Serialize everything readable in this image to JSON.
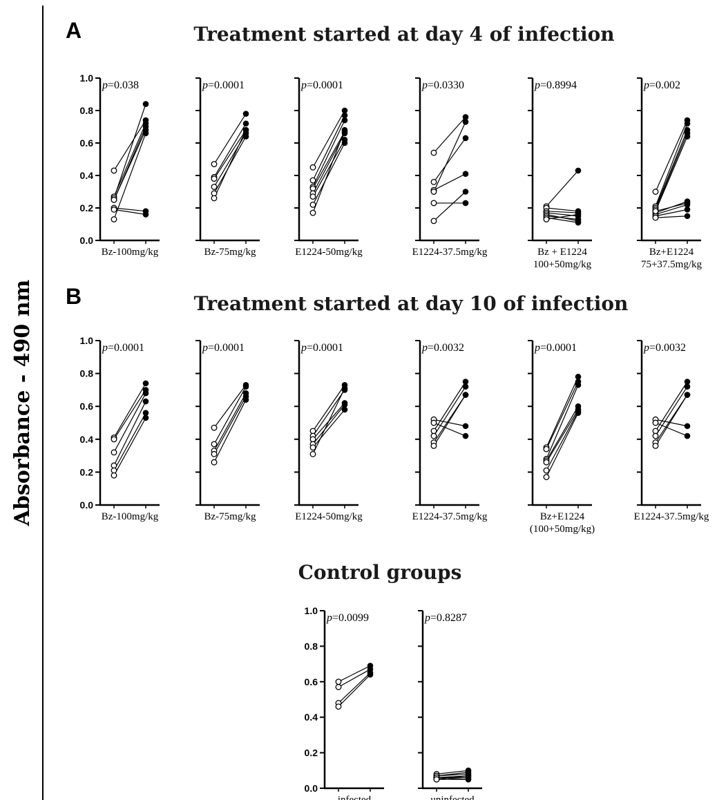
{
  "y_axis_label": "Absorbance - 490 nm",
  "y_ticks": [
    "0.0",
    "0.2",
    "0.4",
    "0.6",
    "0.8",
    "1.0"
  ],
  "sections": [
    {
      "letter": "A",
      "title": "Treatment started at day 4 of infection"
    },
    {
      "letter": "B",
      "title": "Treatment started at day 10 of infection"
    },
    {
      "letter": "",
      "title": "Control groups"
    }
  ],
  "chart_data": [
    {
      "type": "scatter",
      "section": "A",
      "ylim": [
        0,
        1
      ],
      "p_label": "p",
      "p_value": "=0.038",
      "xlabel": [
        "Bz-100mg/kg"
      ],
      "pairs": [
        [
          0.43,
          0.74
        ],
        [
          0.27,
          0.72
        ],
        [
          0.26,
          0.84
        ],
        [
          0.25,
          0.7
        ],
        [
          0.25,
          0.68
        ],
        [
          0.2,
          0.18
        ],
        [
          0.19,
          0.16
        ],
        [
          0.13,
          0.66
        ]
      ]
    },
    {
      "type": "scatter",
      "section": "A",
      "ylim": [
        0,
        1
      ],
      "p_label": "p",
      "p_value": "=0.0001",
      "xlabel": [
        "Bz-75mg/kg"
      ],
      "pairs": [
        [
          0.47,
          0.78
        ],
        [
          0.39,
          0.72
        ],
        [
          0.38,
          0.68
        ],
        [
          0.33,
          0.66
        ],
        [
          0.29,
          0.64
        ],
        [
          0.26,
          0.68
        ]
      ]
    },
    {
      "type": "scatter",
      "section": "A",
      "ylim": [
        0,
        1
      ],
      "p_label": "p",
      "p_value": "=0.0001",
      "xlabel": [
        "E1224-50mg/kg"
      ],
      "pairs": [
        [
          0.45,
          0.8
        ],
        [
          0.37,
          0.77
        ],
        [
          0.33,
          0.74
        ],
        [
          0.32,
          0.67
        ],
        [
          0.29,
          0.66
        ],
        [
          0.27,
          0.62
        ],
        [
          0.22,
          0.6
        ],
        [
          0.17,
          0.68
        ]
      ]
    },
    {
      "type": "scatter",
      "section": "A",
      "ylim": [
        0,
        1
      ],
      "p_label": "p",
      "p_value": "=0.0330",
      "xlabel": [
        "E1224-37.5mg/kg"
      ],
      "pairs": [
        [
          0.54,
          0.76
        ],
        [
          0.36,
          0.63
        ],
        [
          0.31,
          0.41
        ],
        [
          0.23,
          0.23
        ],
        [
          0.12,
          0.3
        ],
        [
          0.3,
          0.73
        ]
      ]
    },
    {
      "type": "scatter",
      "section": "A",
      "ylim": [
        0,
        1
      ],
      "p_label": "p",
      "p_value": "=0.8994",
      "xlabel": [
        "Bz + E1224",
        "100+50mg/kg"
      ],
      "pairs": [
        [
          0.21,
          0.43
        ],
        [
          0.2,
          0.18
        ],
        [
          0.18,
          0.17
        ],
        [
          0.17,
          0.15
        ],
        [
          0.16,
          0.12
        ],
        [
          0.15,
          0.13
        ],
        [
          0.14,
          0.11
        ],
        [
          0.13,
          0.16
        ]
      ]
    },
    {
      "type": "scatter",
      "section": "A",
      "ylim": [
        0,
        1
      ],
      "p_label": "p",
      "p_value": "=0.002",
      "xlabel": [
        "Bz+E1224",
        "75+37.5mg/kg"
      ],
      "pairs": [
        [
          0.3,
          0.74
        ],
        [
          0.21,
          0.72
        ],
        [
          0.2,
          0.68
        ],
        [
          0.19,
          0.66
        ],
        [
          0.18,
          0.64
        ],
        [
          0.17,
          0.24
        ],
        [
          0.16,
          0.22
        ],
        [
          0.15,
          0.19
        ],
        [
          0.14,
          0.15
        ],
        [
          0.18,
          0.23
        ]
      ]
    },
    {
      "type": "scatter",
      "section": "B",
      "ylim": [
        0,
        1
      ],
      "p_label": "p",
      "p_value": "=0.0001",
      "xlabel": [
        "Bz-100mg/kg"
      ],
      "pairs": [
        [
          0.41,
          0.74
        ],
        [
          0.4,
          0.7
        ],
        [
          0.32,
          0.68
        ],
        [
          0.24,
          0.63
        ],
        [
          0.21,
          0.56
        ],
        [
          0.18,
          0.53
        ]
      ]
    },
    {
      "type": "scatter",
      "section": "B",
      "ylim": [
        0,
        1
      ],
      "p_label": "p",
      "p_value": "=0.0001",
      "xlabel": [
        "Bz-75mg/kg"
      ],
      "pairs": [
        [
          0.47,
          0.73
        ],
        [
          0.37,
          0.72
        ],
        [
          0.33,
          0.68
        ],
        [
          0.31,
          0.66
        ],
        [
          0.26,
          0.64
        ]
      ]
    },
    {
      "type": "scatter",
      "section": "B",
      "ylim": [
        0,
        1
      ],
      "p_label": "p",
      "p_value": "=0.0001",
      "xlabel": [
        "E1224-50mg/kg"
      ],
      "pairs": [
        [
          0.45,
          0.73
        ],
        [
          0.42,
          0.7
        ],
        [
          0.4,
          0.62
        ],
        [
          0.37,
          0.61
        ],
        [
          0.35,
          0.58
        ],
        [
          0.31,
          0.71
        ]
      ]
    },
    {
      "type": "scatter",
      "section": "B",
      "ylim": [
        0,
        1
      ],
      "p_label": "p",
      "p_value": "=0.0032",
      "xlabel": [
        "E1224-37.5mg/kg"
      ],
      "pairs": [
        [
          0.52,
          0.48
        ],
        [
          0.5,
          0.42
        ],
        [
          0.45,
          0.75
        ],
        [
          0.42,
          0.72
        ],
        [
          0.38,
          0.67
        ],
        [
          0.36,
          0.67
        ]
      ]
    },
    {
      "type": "scatter",
      "section": "B",
      "ylim": [
        0,
        1
      ],
      "p_label": "p",
      "p_value": "=0.0001",
      "xlabel": [
        "Bz+E1224",
        "(100+50mg/kg)"
      ],
      "pairs": [
        [
          0.35,
          0.78
        ],
        [
          0.34,
          0.75
        ],
        [
          0.28,
          0.73
        ],
        [
          0.27,
          0.6
        ],
        [
          0.26,
          0.58
        ],
        [
          0.21,
          0.57
        ],
        [
          0.17,
          0.56
        ]
      ]
    },
    {
      "type": "scatter",
      "section": "B",
      "ylim": [
        0,
        1
      ],
      "p_label": "p",
      "p_value": "=0.0032",
      "xlabel": [
        "E1224-37.5mg/kg"
      ],
      "pairs": [
        [
          0.52,
          0.48
        ],
        [
          0.5,
          0.42
        ],
        [
          0.45,
          0.75
        ],
        [
          0.42,
          0.72
        ],
        [
          0.38,
          0.67
        ],
        [
          0.36,
          0.67
        ]
      ]
    },
    {
      "type": "scatter",
      "section": "Control",
      "ylim": [
        0,
        1
      ],
      "p_label": "p",
      "p_value": "=0.0099",
      "xlabel": [
        "infected"
      ],
      "pairs": [
        [
          0.6,
          0.69
        ],
        [
          0.57,
          0.67
        ],
        [
          0.48,
          0.65
        ],
        [
          0.46,
          0.64
        ]
      ]
    },
    {
      "type": "scatter",
      "section": "Control",
      "ylim": [
        0,
        1
      ],
      "p_label": "p",
      "p_value": "=0.8287",
      "xlabel": [
        "uninfected"
      ],
      "pairs": [
        [
          0.08,
          0.1
        ],
        [
          0.07,
          0.09
        ],
        [
          0.07,
          0.08
        ],
        [
          0.06,
          0.07
        ],
        [
          0.06,
          0.06
        ],
        [
          0.06,
          0.05
        ],
        [
          0.05,
          0.05
        ],
        [
          0.05,
          0.07
        ]
      ]
    }
  ]
}
